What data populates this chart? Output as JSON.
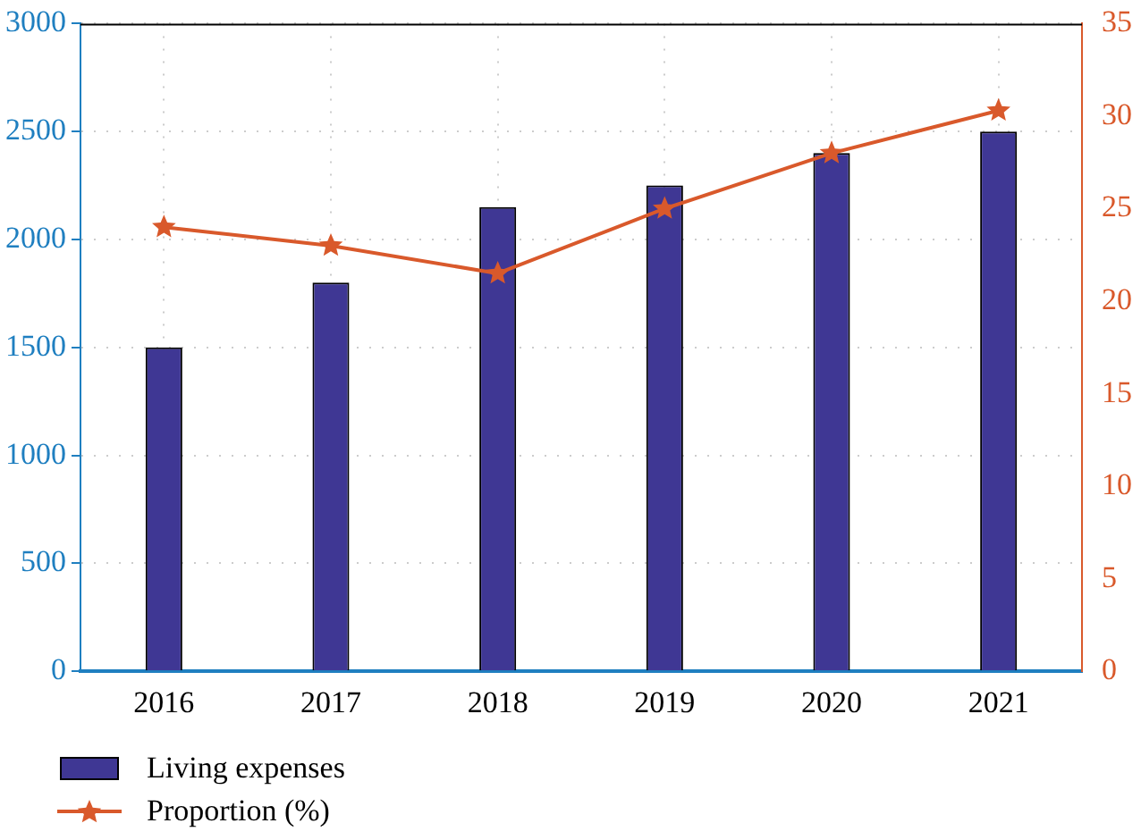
{
  "chart_data": {
    "type": "bar",
    "categories": [
      "2016",
      "2017",
      "2018",
      "2019",
      "2020",
      "2021"
    ],
    "series": [
      {
        "name": "Living expenses",
        "color": "#3f3794",
        "values": [
          1500,
          1800,
          2150,
          2250,
          2400,
          2500
        ]
      },
      {
        "name": "Proportion (%)",
        "type": "line",
        "axis": "y2",
        "color": "#d9592b",
        "marker": "star",
        "values": [
          24,
          23,
          21.5,
          25,
          28,
          30.3
        ]
      }
    ],
    "ylim": [
      0,
      3000
    ],
    "yticks": [
      0,
      500,
      1000,
      1500,
      2000,
      2500,
      3000
    ],
    "y2lim": [
      0,
      35
    ],
    "y2ticks": [
      0,
      5,
      10,
      15,
      20,
      25,
      30,
      35
    ],
    "grid": true,
    "legend": "bottom left"
  }
}
